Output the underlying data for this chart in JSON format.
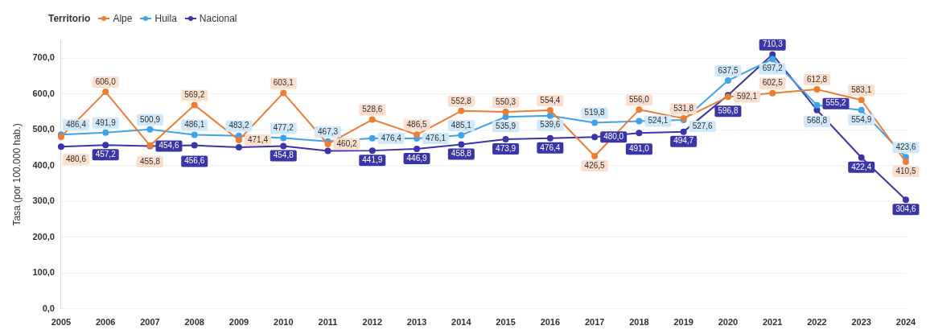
{
  "chart_data": {
    "type": "line",
    "legend_title": "Territorio",
    "ylabel": "Tasa (por 100.000 hab.)",
    "categories": [
      "2005",
      "2006",
      "2007",
      "2008",
      "2009",
      "2010",
      "2011",
      "2012",
      "2013",
      "2014",
      "2015",
      "2016",
      "2017",
      "2018",
      "2019",
      "2020",
      "2021",
      "2022",
      "2023",
      "2024"
    ],
    "series": [
      {
        "name": "Alpe",
        "color": "#ed7d31",
        "values": [
          480.6,
          606.0,
          455.8,
          569.2,
          471.4,
          603.1,
          460.2,
          528.6,
          486.5,
          552.8,
          550.3,
          554.4,
          426.5,
          556.0,
          531.8,
          592.1,
          602.5,
          612.8,
          583.1,
          410.5
        ],
        "value_labels": [
          "480,6",
          "606,0",
          "455,8",
          "569,2",
          "471,4",
          "603,1",
          "460,2",
          "528,6",
          "486,5",
          "552,8",
          "550,3",
          "554,4",
          "426,5",
          "556,0",
          "531,8",
          "592,1",
          "602,5",
          "612,8",
          "583,1",
          "410,5"
        ]
      },
      {
        "name": "Huila",
        "color": "#3fa2ec",
        "values": [
          486.4,
          491.9,
          500.9,
          486.1,
          483.2,
          477.2,
          467.3,
          476.4,
          476.1,
          485.1,
          535.9,
          539.6,
          519.8,
          524.1,
          527.6,
          637.5,
          697.2,
          568.8,
          554.9,
          423.6
        ],
        "value_labels": [
          "486,4",
          "491,9",
          "500,9",
          "486,1",
          "483,2",
          "477,2",
          "467,3",
          "476,4",
          "476,1",
          "485,1",
          "535,9",
          "539,6",
          "519,8",
          "524,1",
          "527,6",
          "637,5",
          "697,2",
          "568,8",
          "554,9",
          "423,6"
        ]
      },
      {
        "name": "Nacional",
        "color": "#3a35a8",
        "values": [
          453.0,
          457.2,
          454.6,
          456.6,
          451.0,
          454.8,
          441.0,
          441.9,
          446.9,
          458.8,
          473.9,
          476.4,
          480.0,
          491.0,
          494.7,
          596.8,
          710.3,
          555.2,
          422.4,
          304.6
        ],
        "value_labels": [
          null,
          "457,2",
          "454,6",
          "456,6",
          null,
          "454,8",
          null,
          "441,9",
          "446,9",
          "458,8",
          "473,9",
          "476,4",
          "480,0",
          "491,0",
          "494,7",
          "596,8",
          "710,3",
          "555,2",
          "422,4",
          "304,6"
        ]
      }
    ],
    "ylim": [
      0,
      750
    ],
    "yticks": [
      {
        "value": 0,
        "label": "0,0"
      },
      {
        "value": 100,
        "label": "100,0"
      },
      {
        "value": 200,
        "label": "200,0"
      },
      {
        "value": 300,
        "label": "300,0"
      },
      {
        "value": 400,
        "label": "400,0"
      },
      {
        "value": 500,
        "label": "500,0"
      },
      {
        "value": 600,
        "label": "600,0"
      },
      {
        "value": 700,
        "label": "700,0"
      }
    ],
    "grid": "y",
    "legend": "top left",
    "marker": "circle",
    "line_style": "solid"
  }
}
